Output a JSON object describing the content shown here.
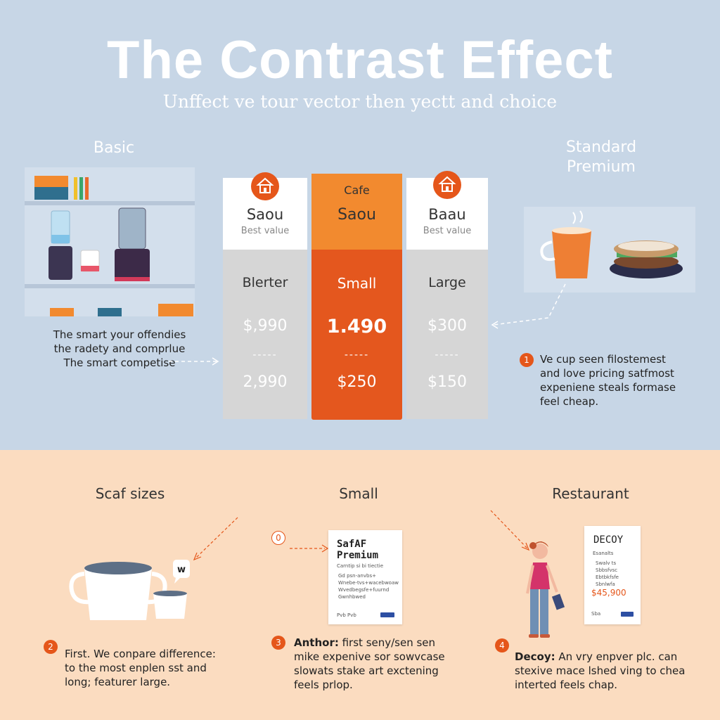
{
  "title": "The Contrast Effect",
  "subtitle": "Unffect ve tour vector then yectt and choice",
  "left_label": "Basic",
  "right_label_line1": "Standard",
  "right_label_line2": "Premium",
  "left_note": [
    "The smart your offendies",
    "the radety and comprlue",
    "The smart competise"
  ],
  "columns": [
    {
      "name": "Saou",
      "tag": "Best value",
      "size": "Blerter",
      "price1": "$,990",
      "dash": "-----",
      "price2": "2,990"
    },
    {
      "cafe": "Cafe",
      "name": "Saou",
      "size": "Small",
      "price1": "1.490",
      "dash": "-----",
      "price2": "$250"
    },
    {
      "name": "Baau",
      "tag": "Best value",
      "size": "Large",
      "price1": "$300",
      "dash": "-----",
      "price2": "$150"
    }
  ],
  "right_note": {
    "num": "1",
    "lines": [
      "Ve cup seen filostemest",
      "and love pricing satfmost",
      "expeniene steals formase",
      "feel cheap."
    ]
  },
  "bottom": {
    "sections": [
      {
        "heading": "Scaf sizes",
        "num": "2",
        "lines": [
          "First. We conpare difference:",
          "to the most enplen sst and",
          "long; featurer large."
        ],
        "bubble": "w"
      },
      {
        "heading": "Small",
        "num": "3",
        "bold": "Anthor:",
        "lines": [
          " first seny/sen sen",
          "mike expenive sor sowvcase",
          "slowats stake art exctening",
          "feels prlop."
        ],
        "marker": "0",
        "card": {
          "title1": "SafAF",
          "title2": "Premium",
          "sub": "Carntip si bi tiectie",
          "items": [
            "Gd psn-anvbs+",
            "Wnebe-tvs+wacebwoaw",
            "Wvedbegsfe+fuurnd",
            "Gwnhbwed"
          ],
          "foot": "Pvb Pvb"
        }
      },
      {
        "heading": "Restaurant",
        "num": "4",
        "bold": "Decoy:",
        "lines": [
          " An vry enpver plc. can",
          "stexive mace lshed ving to chea",
          "interted feels chap."
        ],
        "card": {
          "title": "DECOY",
          "sub": "Esanalts",
          "items": [
            "Swalv ts",
            "Sbbsfvsc",
            "Ebtbkfsfe",
            "Sbnlwfa"
          ],
          "price": "$45,900",
          "foot": "Sba"
        }
      }
    ]
  },
  "colors": {
    "accent": "#e5561a",
    "accent_light": "#f28a2f",
    "top_bg": "#c7d6e6",
    "bottom_bg": "#fbdcc0"
  },
  "icons": [
    "house-icon",
    "blender-icon",
    "coffee-cup-icon",
    "sandwich-icon",
    "person-icon"
  ]
}
